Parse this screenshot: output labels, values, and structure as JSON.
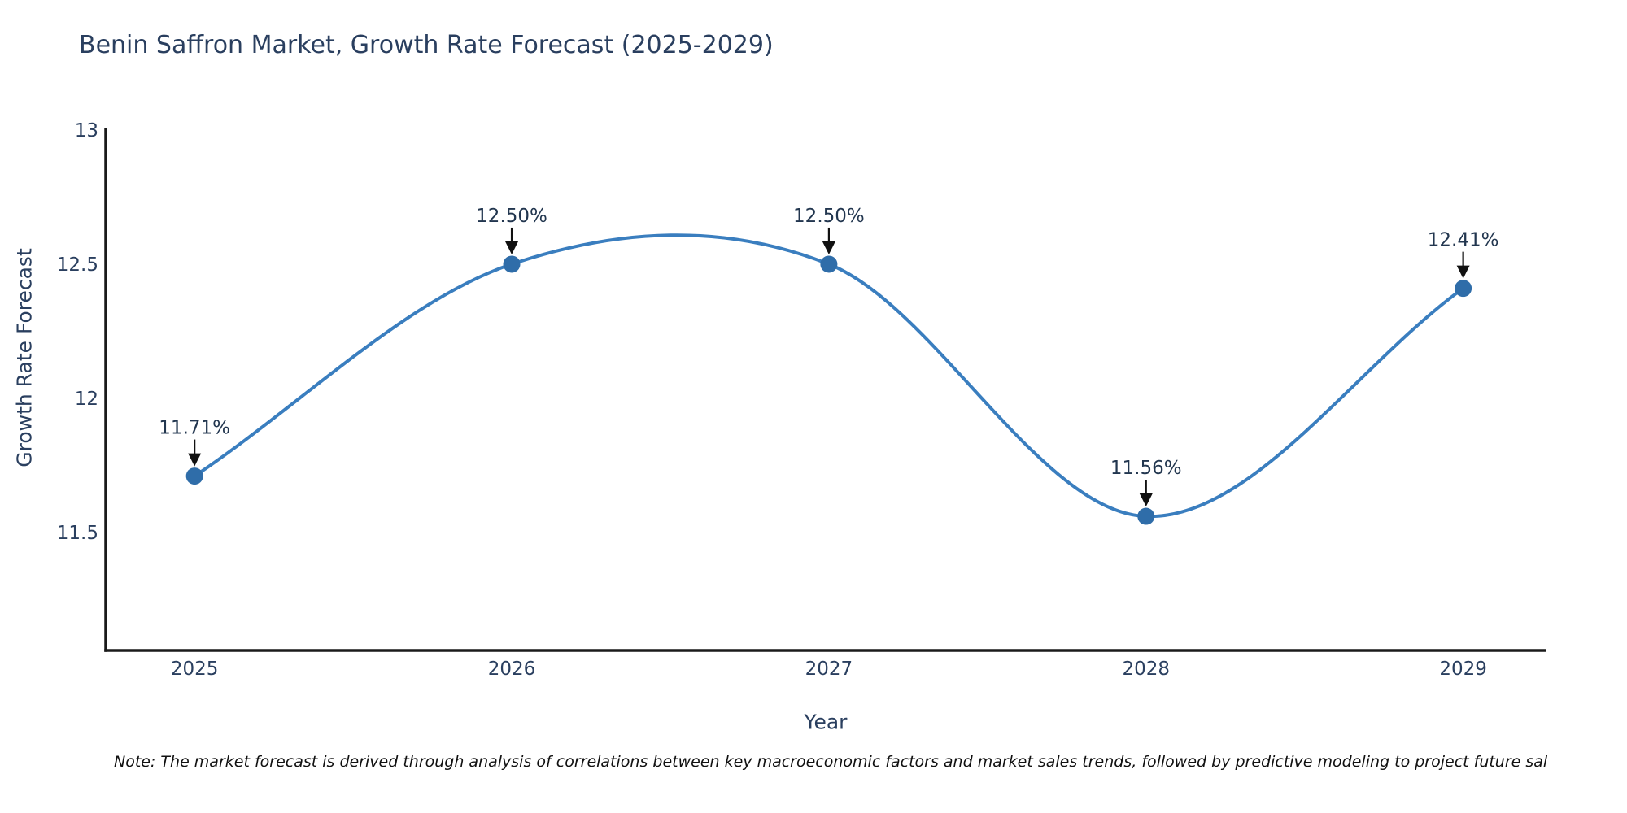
{
  "title": "Benin Saffron Market, Growth Rate Forecast (2025-2029)",
  "note": "Note: The market forecast is derived through analysis of correlations between key macroeconomic factors and market sales trends, followed by predictive modeling to project future sal",
  "chart_data": {
    "type": "line",
    "line_shape": "spline",
    "title": "Benin Saffron Market, Growth Rate Forecast (2025-2029)",
    "xlabel": "Year",
    "ylabel": "Growth Rate Forecast",
    "x": [
      2025,
      2026,
      2027,
      2028,
      2029
    ],
    "values": [
      11.71,
      12.5,
      12.5,
      11.56,
      12.41
    ],
    "point_labels": [
      "11.71%",
      "12.50%",
      "12.50%",
      "11.56%",
      "12.41%"
    ],
    "xticks": [
      "2025",
      "2026",
      "2027",
      "2028",
      "2029"
    ],
    "xtick_values": [
      2025,
      2026,
      2027,
      2028,
      2029
    ],
    "yticks": [
      "11.5",
      "12",
      "12.5",
      "13"
    ],
    "ytick_values": [
      11.5,
      12,
      12.5,
      13
    ],
    "xlim": [
      2024.72,
      2029.26
    ],
    "ylim": [
      11.06,
      13.0
    ],
    "grid": false,
    "legend_position": "none",
    "colors": {
      "line": "#3a7ebf",
      "marker": "#2f6da9",
      "axis": "#1a1a1a",
      "tick_text": "#2a3f5f",
      "annotation_text": "#22364f",
      "arrow": "#111111",
      "background": "#ffffff"
    }
  }
}
